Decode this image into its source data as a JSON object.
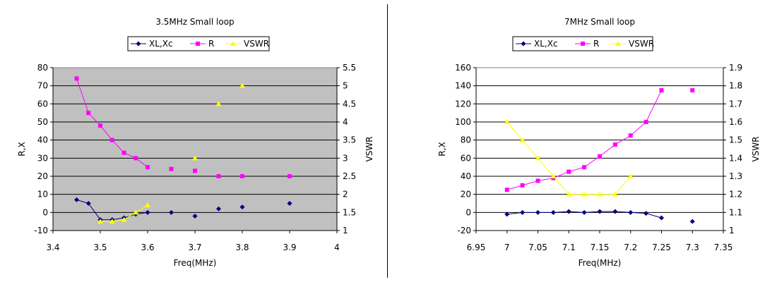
{
  "chart_data": [
    {
      "type": "scatter",
      "title": "3.5MHz Small loop",
      "xlabel": "Freq(MHz)",
      "ylabel": "R,X",
      "y2label": "VSWR",
      "xlim": [
        3.4,
        4.0
      ],
      "ylim": [
        -10,
        80
      ],
      "y2lim": [
        1,
        5.5
      ],
      "xticks": [
        "3.4",
        "3.5",
        "3.6",
        "3.7",
        "3.8",
        "3.9",
        "4"
      ],
      "yticks": [
        "-10",
        "0",
        "10",
        "20",
        "30",
        "40",
        "50",
        "60",
        "70",
        "80"
      ],
      "y2ticks": [
        "1",
        "1.5",
        "2",
        "2.5",
        "3",
        "3.5",
        "4",
        "4.5",
        "5",
        "5.5"
      ],
      "grid": true,
      "legend": "top-center",
      "plot_background": "#c0c0c0",
      "series": [
        {
          "name": "XL,Xc",
          "color": "#000080",
          "marker": "diamond",
          "axis": "left",
          "x": [
            3.45,
            3.475,
            3.5,
            3.525,
            3.55,
            3.575,
            3.6,
            3.65,
            3.7,
            3.75,
            3.8,
            3.9
          ],
          "values": [
            7,
            5,
            -4,
            -4,
            -3,
            -1,
            0,
            0,
            -2,
            2,
            3,
            5
          ],
          "line_points": 7
        },
        {
          "name": "R",
          "color": "#ff00ff",
          "marker": "square",
          "axis": "left",
          "x": [
            3.45,
            3.475,
            3.5,
            3.525,
            3.55,
            3.575,
            3.6,
            3.65,
            3.7,
            3.75,
            3.8,
            3.9
          ],
          "values": [
            74,
            55,
            48,
            40,
            33,
            30,
            25,
            24,
            23,
            20,
            20,
            20
          ],
          "line_points": 7
        },
        {
          "name": "VSWR",
          "color": "#ffff00",
          "marker": "triangle",
          "axis": "right",
          "x": [
            3.5,
            3.525,
            3.55,
            3.575,
            3.6,
            3.7,
            3.75,
            3.8
          ],
          "values": [
            1.25,
            1.25,
            1.3,
            1.5,
            1.7,
            3.0,
            4.5,
            5.0
          ],
          "line_points": 5
        }
      ]
    },
    {
      "type": "scatter",
      "title": "7MHz Small loop",
      "xlabel": "Freq(MHz)",
      "ylabel": "R,X",
      "y2label": "VSWR",
      "xlim": [
        6.95,
        7.35
      ],
      "ylim": [
        -20,
        160
      ],
      "y2lim": [
        1,
        1.9
      ],
      "xticks": [
        "6.95",
        "7",
        "7.05",
        "7.1",
        "7.15",
        "7.2",
        "7.25",
        "7.3",
        "7.35"
      ],
      "yticks": [
        "-20",
        "0",
        "20",
        "40",
        "60",
        "80",
        "100",
        "120",
        "140",
        "160"
      ],
      "y2ticks": [
        "1",
        "1.1",
        "1.2",
        "1.3",
        "1.4",
        "1.5",
        "1.6",
        "1.7",
        "1.8",
        "1.9"
      ],
      "grid": true,
      "legend": "top-center",
      "plot_background": "#ffffff",
      "series": [
        {
          "name": "XL,Xc",
          "color": "#000080",
          "marker": "diamond",
          "axis": "left",
          "x": [
            7.0,
            7.025,
            7.05,
            7.075,
            7.1,
            7.125,
            7.15,
            7.175,
            7.2,
            7.225,
            7.25,
            7.3
          ],
          "values": [
            -2,
            0,
            0,
            0,
            1,
            0,
            1,
            1,
            0,
            -1,
            -6,
            -10
          ],
          "line_points": 11
        },
        {
          "name": "R",
          "color": "#ff00ff",
          "marker": "square",
          "axis": "left",
          "x": [
            7.0,
            7.025,
            7.05,
            7.075,
            7.1,
            7.125,
            7.15,
            7.175,
            7.2,
            7.225,
            7.25,
            7.3
          ],
          "values": [
            25,
            30,
            35,
            38,
            45,
            50,
            62,
            75,
            85,
            100,
            135,
            135
          ],
          "line_points": 11
        },
        {
          "name": "VSWR",
          "color": "#ffff00",
          "marker": "triangle",
          "axis": "right",
          "x": [
            7.0,
            7.025,
            7.05,
            7.075,
            7.1,
            7.125,
            7.15,
            7.175,
            7.2
          ],
          "values": [
            1.6,
            1.5,
            1.4,
            1.3,
            1.2,
            1.2,
            1.2,
            1.2,
            1.3
          ],
          "line_points": 9
        }
      ]
    }
  ]
}
